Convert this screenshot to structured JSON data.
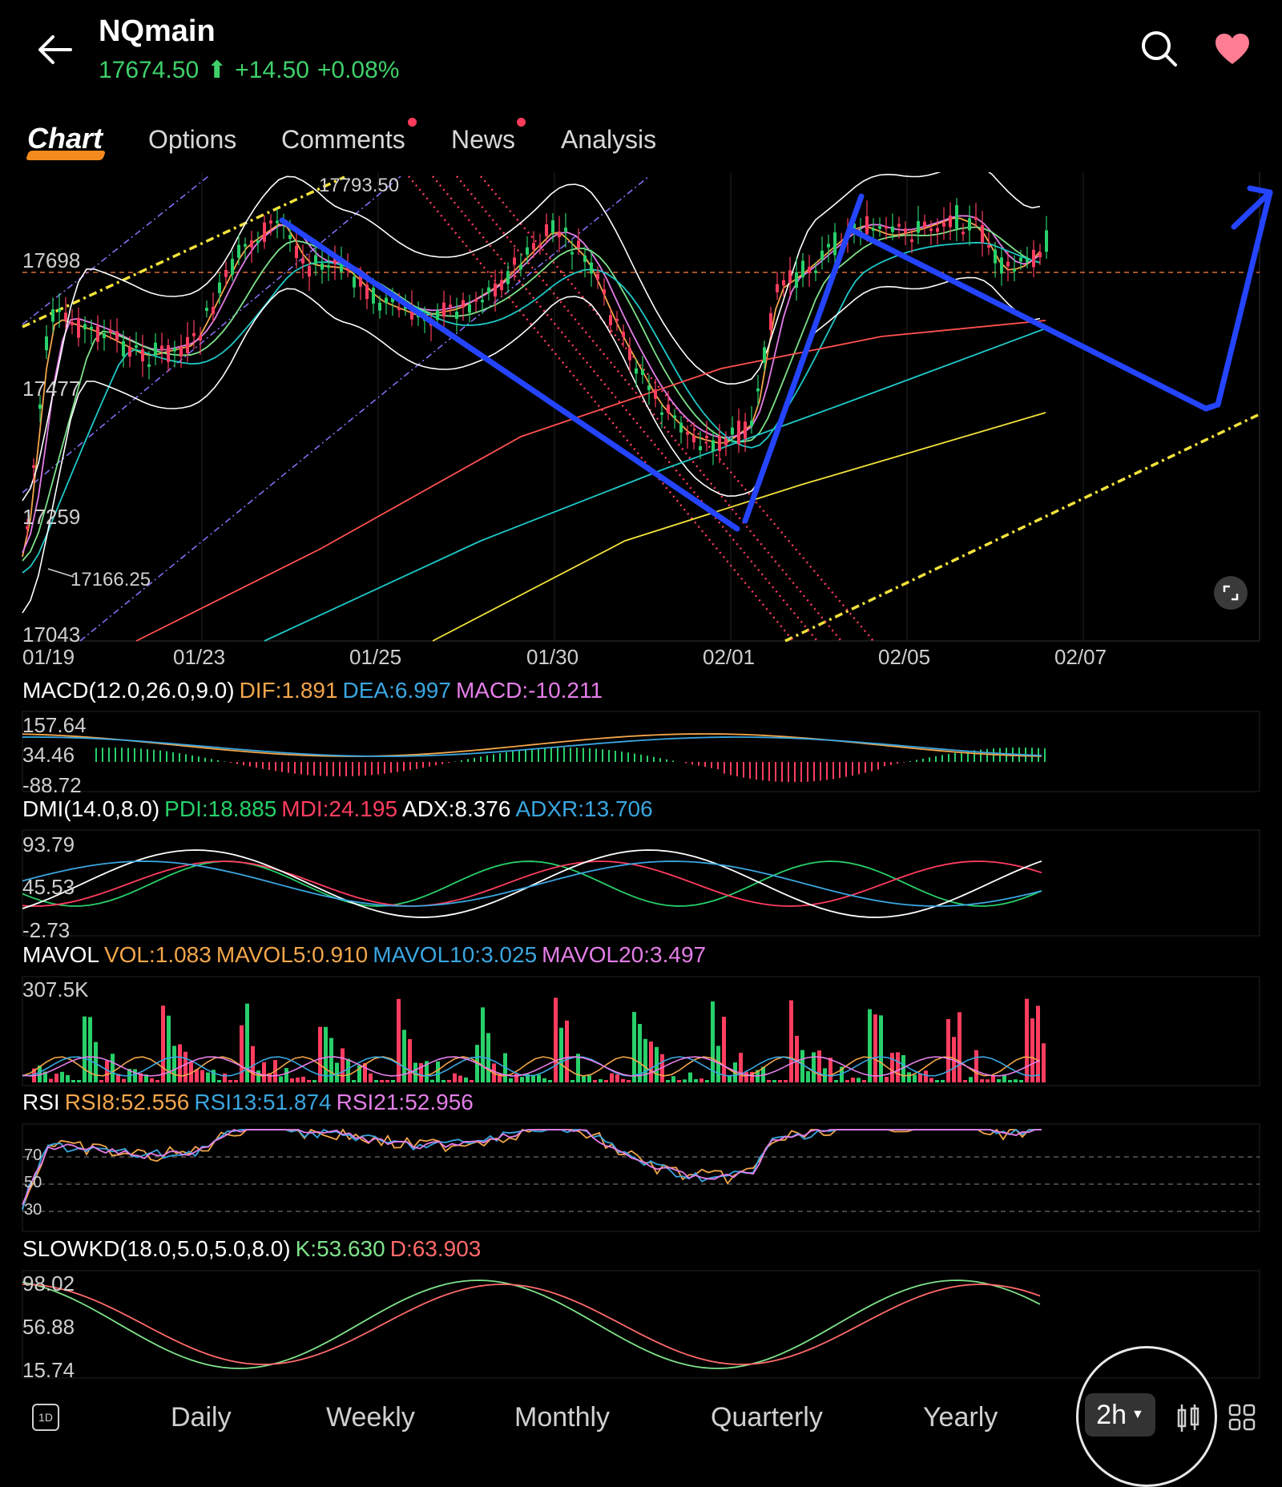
{
  "header": {
    "symbol": "NQmain",
    "price": "17674.50",
    "change": "+14.50",
    "change_pct": "+0.08%",
    "price_color": "#3fd06b",
    "favorite_color": "#ff7d93"
  },
  "tabs": [
    {
      "label": "Chart",
      "active": true
    },
    {
      "label": "Options"
    },
    {
      "label": "Comments",
      "has_dot": true
    },
    {
      "label": "News",
      "has_dot": true
    },
    {
      "label": "Analysis"
    }
  ],
  "main_chart": {
    "y_ticks": [
      "17698",
      "17477",
      "17259",
      "17043"
    ],
    "high_label": "17793.50",
    "low_label": "17166.25",
    "dates": [
      "01/19",
      "01/23",
      "01/25",
      "01/30",
      "02/01",
      "02/05",
      "02/07"
    ]
  },
  "macd": {
    "name": "MACD(12.0,26.0,9.0)",
    "dif": "DIF:1.891",
    "dea": "DEA:6.997",
    "macd": "MACD:-10.211",
    "ticks": [
      "157.64",
      "34.46",
      "-88.72"
    ]
  },
  "dmi": {
    "name": "DMI(14.0,8.0)",
    "pdi": "PDI:18.885",
    "mdi": "MDI:24.195",
    "adx": "ADX:8.376",
    "adxr": "ADXR:13.706",
    "ticks": [
      "93.79",
      "45.53",
      "-2.73"
    ]
  },
  "mavol": {
    "name": "MAVOL",
    "vol": "VOL:1.083",
    "mavol5": "MAVOL5:0.910",
    "mavol10": "MAVOL10:3.025",
    "mavol20": "MAVOL20:3.497",
    "ticks": [
      "307.5K"
    ]
  },
  "rsi": {
    "name": "RSI",
    "rsi8": "RSI8:52.556",
    "rsi13": "RSI13:51.874",
    "rsi21": "RSI21:52.956",
    "ticks": [
      "70",
      "50",
      "30"
    ]
  },
  "slowkd": {
    "name": "SLOWKD(18.0,5.0,5.0,8.0)",
    "k": "K:53.630",
    "d": "D:63.903",
    "ticks": [
      "98.02",
      "56.88",
      "15.74"
    ]
  },
  "bottom_bar": {
    "d1_label": "1D",
    "periods": [
      "Daily",
      "Weekly",
      "Monthly",
      "Quarterly",
      "Yearly"
    ],
    "selected_period": "2h"
  },
  "colors": {
    "up": "#28d06a",
    "down": "#ff3d5f",
    "orange": "#f3a64a",
    "blue": "#3aa6e0",
    "pink": "#e47ee8",
    "drawing": "#2444ff",
    "yellow": "#f2e23a"
  }
}
